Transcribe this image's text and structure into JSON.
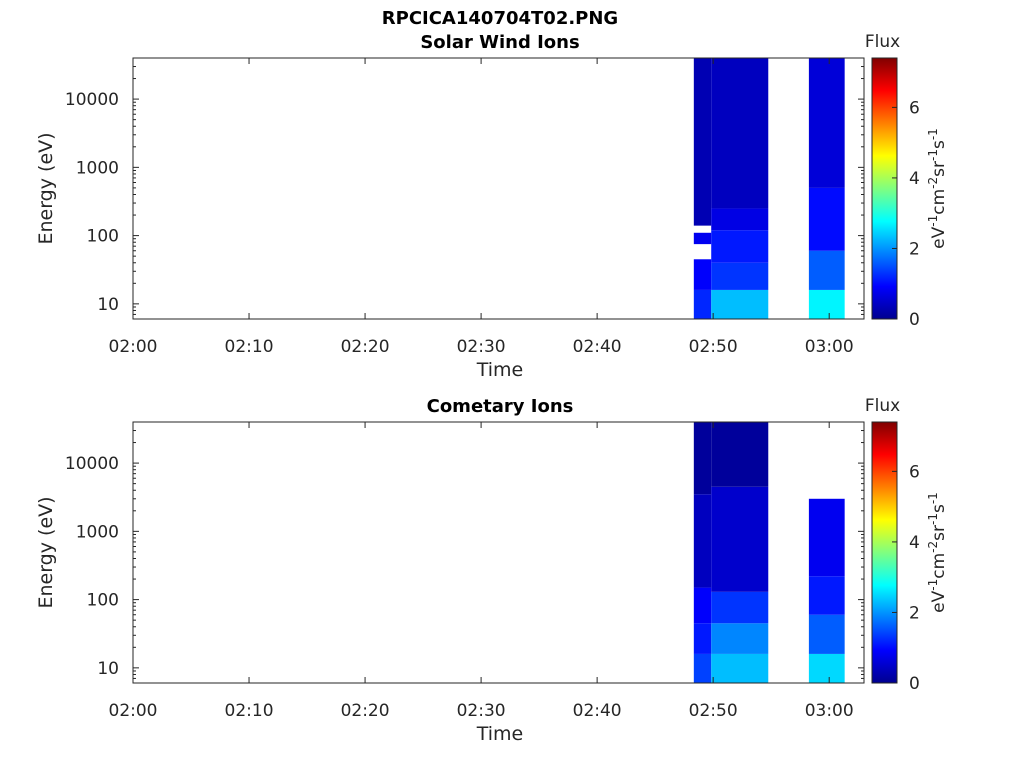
{
  "figure_title": "RPCICA140704T02.PNG",
  "colorbar": {
    "title": "Flux",
    "unit": "eV-1cm-2sr-1s-1",
    "unit_parts": [
      {
        "text": "eV",
        "sup": false
      },
      {
        "text": "-1",
        "sup": true
      },
      {
        "text": "cm",
        "sup": false
      },
      {
        "text": "-2",
        "sup": true
      },
      {
        "text": "sr",
        "sup": false
      },
      {
        "text": "-1",
        "sup": true
      },
      {
        "text": "s",
        "sup": false
      },
      {
        "text": "-1",
        "sup": true
      }
    ],
    "range": [
      0,
      7.4
    ],
    "ticks": [
      0,
      2,
      4,
      6
    ],
    "tick_labels": [
      "0",
      "2",
      "4",
      "6"
    ],
    "colormap": "jet"
  },
  "chart_data": [
    {
      "type": "heatmap",
      "title": "Solar Wind Ions",
      "xlabel": "Time",
      "ylabel": "Energy (eV)",
      "x_range": [
        "02:00",
        "03:03"
      ],
      "x_ticks": [
        "02:00",
        "02:10",
        "02:20",
        "02:30",
        "02:40",
        "02:50",
        "03:00"
      ],
      "y_scale": "log",
      "y_range": [
        6,
        40000
      ],
      "y_ticks": [
        10,
        100,
        1000,
        10000
      ],
      "y_tick_labels": [
        "10",
        "100",
        "1000",
        "10000"
      ],
      "colorbar_title": "Flux",
      "blocks": [
        {
          "t_start": "02:48:20",
          "t_end": "02:49:50",
          "bands": [
            {
              "e_low": 6,
              "e_high": 16,
              "flux": 1.2
            },
            {
              "e_low": 16,
              "e_high": 45,
              "flux": 0.9
            },
            {
              "e_low": 45,
              "e_high": 75,
              "flux": null
            },
            {
              "e_low": 75,
              "e_high": 110,
              "flux": 0.8
            },
            {
              "e_low": 110,
              "e_high": 140,
              "flux": null
            },
            {
              "e_low": 140,
              "e_high": 40000,
              "flux": 0.3
            }
          ]
        },
        {
          "t_start": "02:49:50",
          "t_end": "02:54:45",
          "bands": [
            {
              "e_low": 6,
              "e_high": 16,
              "flux": 2.3
            },
            {
              "e_low": 16,
              "e_high": 40,
              "flux": 1.3
            },
            {
              "e_low": 40,
              "e_high": 120,
              "flux": 1.1
            },
            {
              "e_low": 120,
              "e_high": 250,
              "flux": 0.7
            },
            {
              "e_low": 250,
              "e_high": 40000,
              "flux": 0.4
            }
          ]
        },
        {
          "t_start": "02:58:15",
          "t_end": "03:01:20",
          "bands": [
            {
              "e_low": 6,
              "e_high": 16,
              "flux": 2.7
            },
            {
              "e_low": 16,
              "e_high": 60,
              "flux": 1.6
            },
            {
              "e_low": 60,
              "e_high": 500,
              "flux": 1.0
            },
            {
              "e_low": 500,
              "e_high": 40000,
              "flux": 0.6
            }
          ]
        }
      ]
    },
    {
      "type": "heatmap",
      "title": "Cometary Ions",
      "xlabel": "Time",
      "ylabel": "Energy (eV)",
      "x_range": [
        "02:00",
        "03:03"
      ],
      "x_ticks": [
        "02:00",
        "02:10",
        "02:20",
        "02:30",
        "02:40",
        "02:50",
        "03:00"
      ],
      "y_scale": "log",
      "y_range": [
        6,
        40000
      ],
      "y_ticks": [
        10,
        100,
        1000,
        10000
      ],
      "y_tick_labels": [
        "10",
        "100",
        "1000",
        "10000"
      ],
      "colorbar_title": "Flux",
      "blocks": [
        {
          "t_start": "02:48:20",
          "t_end": "02:49:50",
          "bands": [
            {
              "e_low": 6,
              "e_high": 16,
              "flux": 1.4
            },
            {
              "e_low": 16,
              "e_high": 45,
              "flux": 1.1
            },
            {
              "e_low": 45,
              "e_high": 150,
              "flux": 0.9
            },
            {
              "e_low": 150,
              "e_high": 3500,
              "flux": 0.4
            },
            {
              "e_low": 3500,
              "e_high": 40000,
              "flux": 0.1
            }
          ]
        },
        {
          "t_start": "02:49:50",
          "t_end": "02:54:45",
          "bands": [
            {
              "e_low": 6,
              "e_high": 16,
              "flux": 2.3
            },
            {
              "e_low": 16,
              "e_high": 45,
              "flux": 1.9
            },
            {
              "e_low": 45,
              "e_high": 130,
              "flux": 1.3
            },
            {
              "e_low": 130,
              "e_high": 4500,
              "flux": 0.5
            },
            {
              "e_low": 4500,
              "e_high": 40000,
              "flux": 0.1
            }
          ]
        },
        {
          "t_start": "02:58:15",
          "t_end": "03:01:20",
          "bands": [
            {
              "e_low": 6,
              "e_high": 16,
              "flux": 2.5
            },
            {
              "e_low": 16,
              "e_high": 60,
              "flux": 1.6
            },
            {
              "e_low": 60,
              "e_high": 220,
              "flux": 1.1
            },
            {
              "e_low": 220,
              "e_high": 3000,
              "flux": 0.8
            }
          ]
        }
      ]
    }
  ]
}
